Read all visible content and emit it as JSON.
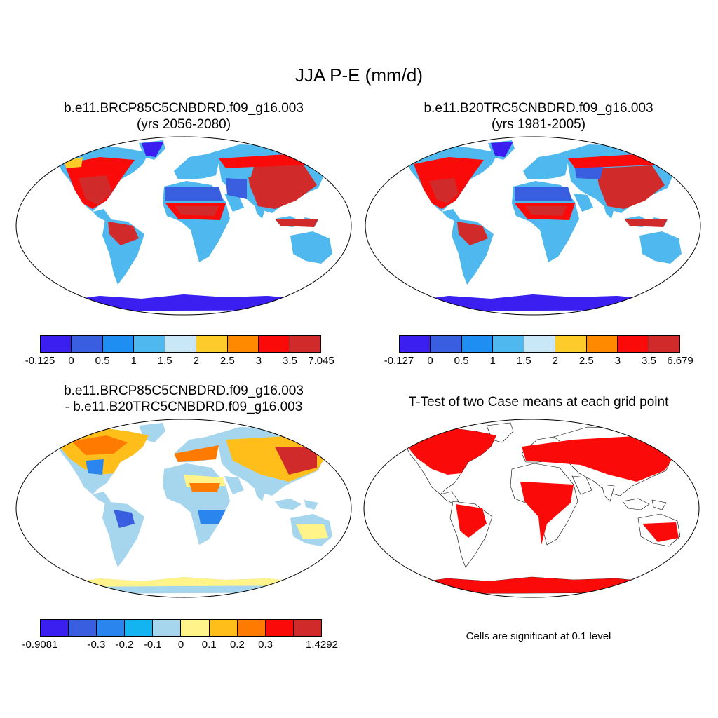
{
  "title": "JJA P-E (mm/d)",
  "panels": [
    {
      "id": "future",
      "title_line1": "b.e11.BRCP85C5CNBDRD.f09_g16.003",
      "title_line2": "(yrs 2056-2080)",
      "colorbar": {
        "colors": [
          "#3b1ff0",
          "#3a5ee0",
          "#1f8ef2",
          "#4fb8ee",
          "#c9e8f7",
          "#fdcb2a",
          "#ff8a00",
          "#fb0a0a",
          "#d12a2a"
        ],
        "labels": [
          "-0.125",
          "0",
          "0.5",
          "1",
          "1.5",
          "2",
          "2.5",
          "3",
          "3.5",
          "7.045"
        ]
      }
    },
    {
      "id": "historical",
      "title_line1": "b.e11.B20TRC5CNBDRD.f09_g16.003",
      "title_line2": "(yrs 1981-2005)",
      "colorbar": {
        "colors": [
          "#3b1ff0",
          "#3a5ee0",
          "#1f8ef2",
          "#4fb8ee",
          "#c9e8f7",
          "#fdcb2a",
          "#ff8a00",
          "#fb0a0a",
          "#d12a2a"
        ],
        "labels": [
          "-0.127",
          "0",
          "0.5",
          "1",
          "1.5",
          "2",
          "2.5",
          "3",
          "3.5",
          "6.679"
        ]
      }
    },
    {
      "id": "difference",
      "title_line1": "b.e11.BRCP85C5CNBDRD.f09_g16.003",
      "title_line2": "- b.e11.B20TRC5CNBDRD.f09_g16.003",
      "colorbar": {
        "colors": [
          "#3b1ff0",
          "#3a5ee0",
          "#2a86ee",
          "#14b4f0",
          "#a6d6ee",
          "#fff38a",
          "#ffbe1a",
          "#ff7a00",
          "#fb0a0a",
          "#d12a2a"
        ],
        "labels": [
          "-0.9081",
          "",
          "-0.3",
          "-0.2",
          "-0.1",
          "0",
          "0.1",
          "0.2",
          "0.3",
          "",
          "1.4292"
        ]
      }
    },
    {
      "id": "ttest",
      "title_line1": "T-Test of two Case means at each grid point",
      "note": "Cells are significant at 0.1 level"
    }
  ]
}
